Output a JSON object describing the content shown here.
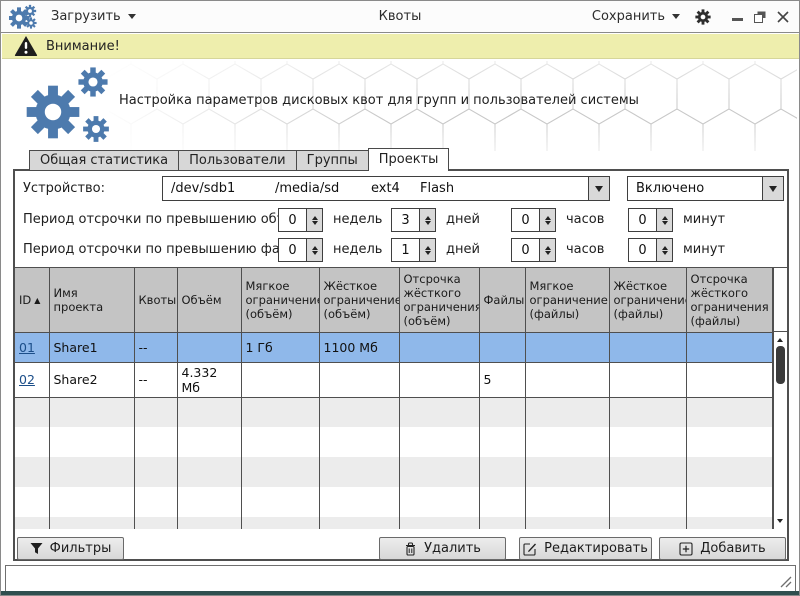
{
  "titlebar": {
    "load": "Загрузить",
    "title": "Квоты",
    "save": "Сохранить"
  },
  "warning": {
    "text": "Внимание!"
  },
  "header": {
    "text": "Настройка параметров дисковых квот для групп и пользователей системы"
  },
  "tabs": {
    "stats": "Общая статистика",
    "users": "Пользователи",
    "groups": "Группы",
    "projects": "Проекты"
  },
  "device": {
    "label": "Устройство:",
    "mount_parts": [
      "/dev/sdb1",
      "/media/sd",
      "ext4",
      "Flash"
    ],
    "state": "Включено"
  },
  "grace": {
    "volume": {
      "label": "Период отсрочки по превышению объёма:",
      "weeks": "0",
      "days": "3",
      "hours": "0",
      "minutes": "0"
    },
    "files": {
      "label": "Период отсрочки по превышению файлов:",
      "weeks": "0",
      "days": "1",
      "hours": "0",
      "minutes": "0"
    },
    "units": {
      "weeks": "недель",
      "days": "дней",
      "hours": "часов",
      "minutes": "минут"
    }
  },
  "table": {
    "sort_icon": "▲",
    "columns": [
      "ID",
      "Имя проекта",
      "Квоты",
      "Объём",
      "Мягкое ограничение (объём)",
      "Жёсткое ограничение (объём)",
      "Отсрочка жёсткого ограничения (объём)",
      "Файлы",
      "Мягкое ограничение (файлы)",
      "Жёсткое ограничение (файлы)",
      "Отсрочка жёсткого ограничения (файлы)"
    ],
    "rows": [
      {
        "id": "01",
        "name": "Share1",
        "quotas": "--",
        "volume": "",
        "soft_volume": "1 Гб",
        "hard_volume": "1100 Мб",
        "grace_volume": "",
        "files": "",
        "soft_files": "",
        "hard_files": "",
        "grace_files": ""
      },
      {
        "id": "02",
        "name": "Share2",
        "quotas": "--",
        "volume": "4.332 Мб",
        "soft_volume": "",
        "hard_volume": "",
        "grace_volume": "",
        "files": "5",
        "soft_files": "",
        "hard_files": "",
        "grace_files": ""
      }
    ]
  },
  "actions": {
    "filters": "Фильтры",
    "delete": "Удалить",
    "edit": "Редактировать",
    "add": "Добавить"
  },
  "colors": {
    "accent_blue": "#4d7aad",
    "selection": "#8fb8ea",
    "warning_bg": "#eeeead"
  }
}
